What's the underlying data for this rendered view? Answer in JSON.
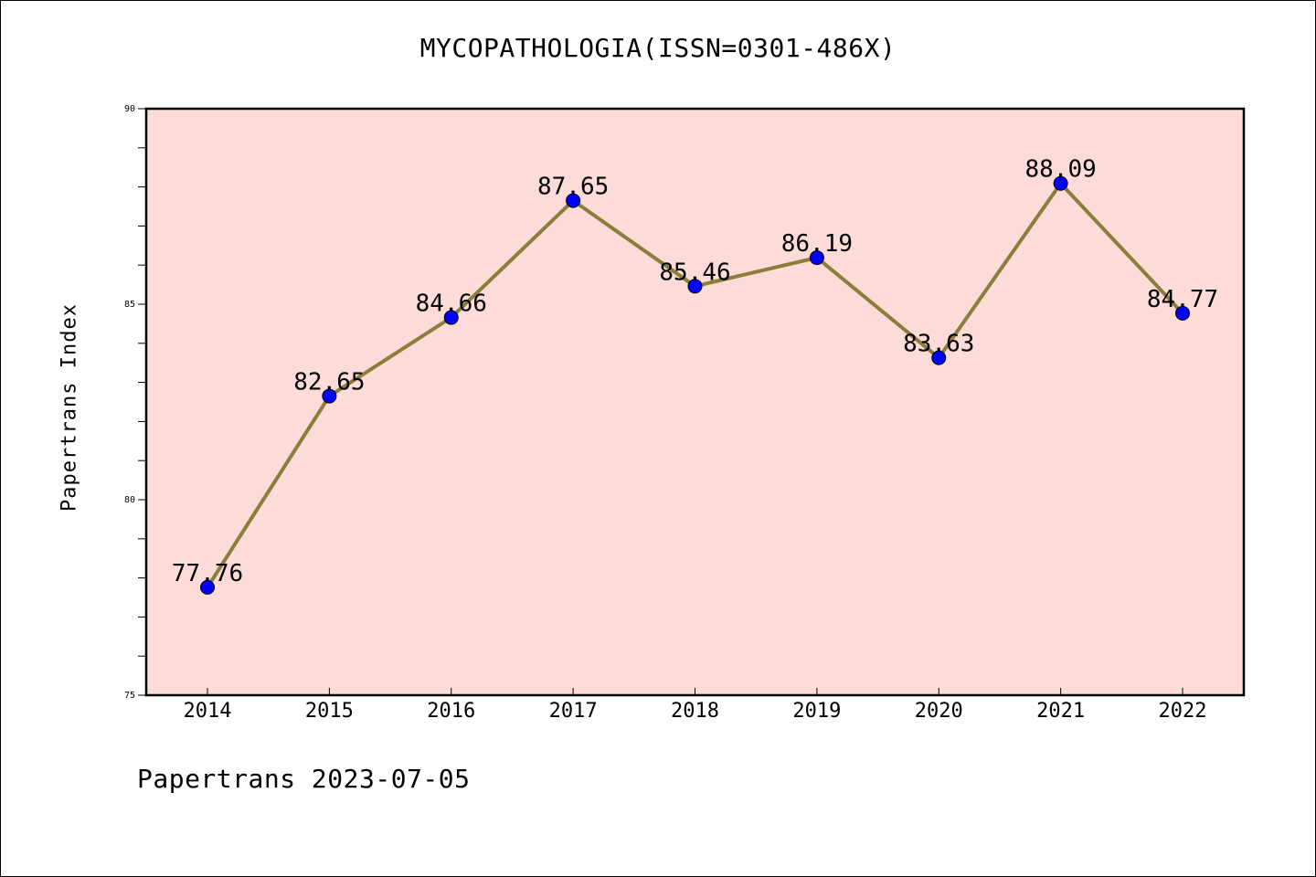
{
  "chart_data": {
    "type": "line",
    "title": "MYCOPATHOLOGIA(ISSN=0301-486X)",
    "xlabel": "",
    "ylabel": "Papertrans Index",
    "categories": [
      "2014",
      "2015",
      "2016",
      "2017",
      "2018",
      "2019",
      "2020",
      "2021",
      "2022"
    ],
    "series": [
      {
        "values": [
          77.76,
          82.65,
          84.66,
          87.65,
          85.46,
          86.19,
          83.63,
          88.09,
          84.77
        ]
      }
    ],
    "data_labels": [
      "77.76",
      "82.65",
      "84.66",
      "87.65",
      "85.46",
      "86.19",
      "83.63",
      "88.09",
      "84.77"
    ],
    "ylim": [
      75,
      90
    ],
    "yticks": [
      75,
      80,
      85,
      90
    ],
    "ytick_labels": [
      "75",
      "80",
      "85",
      "90"
    ],
    "grid": false,
    "legend": "none",
    "colors": {
      "plot_background": "#fddbd8",
      "line": "#8b7d3a",
      "marker": "#0000ff"
    }
  },
  "footer": "Papertrans 2023-07-05"
}
